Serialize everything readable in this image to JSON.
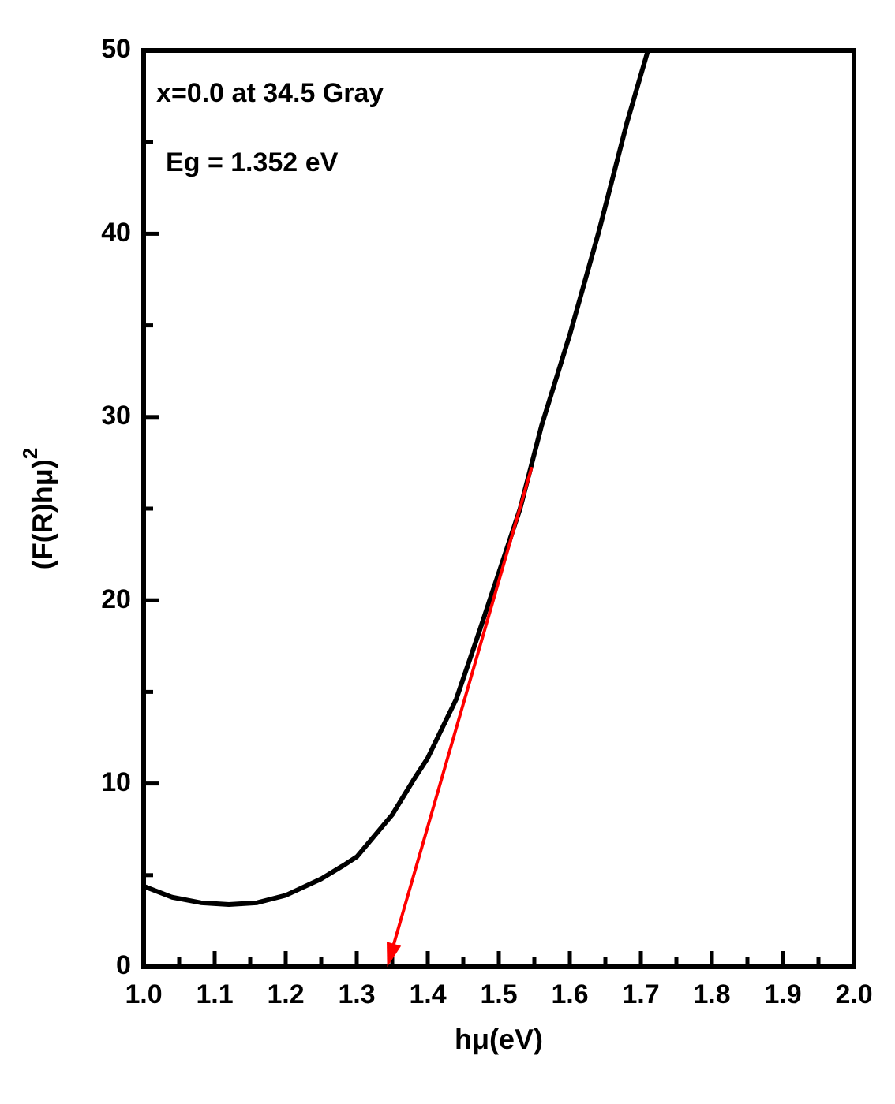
{
  "chart_data": {
    "type": "line",
    "xlabel": "hμ(eV)",
    "ylabel": "(F(R)hμ)$^{2}$",
    "marker": "none",
    "line_style": "solid",
    "legend": false,
    "grid": false,
    "xlim": [
      1.0,
      2.0
    ],
    "xticks": [
      {
        "value": 1.0,
        "label": "1.0"
      },
      {
        "value": 1.05,
        "label": null
      },
      {
        "value": 1.1,
        "label": "1.1"
      },
      {
        "value": 1.15,
        "label": null
      },
      {
        "value": 1.2,
        "label": "1.2"
      },
      {
        "value": 1.25,
        "label": null
      },
      {
        "value": 1.3,
        "label": "1.3"
      },
      {
        "value": 1.35,
        "label": null
      },
      {
        "value": 1.4,
        "label": "1.4"
      },
      {
        "value": 1.45,
        "label": null
      },
      {
        "value": 1.5,
        "label": "1.5"
      },
      {
        "value": 1.55,
        "label": null
      },
      {
        "value": 1.6,
        "label": "1.6"
      },
      {
        "value": 1.65,
        "label": null
      },
      {
        "value": 1.7,
        "label": "1.7"
      },
      {
        "value": 1.75,
        "label": null
      },
      {
        "value": 1.8,
        "label": "1.8"
      },
      {
        "value": 1.85,
        "label": null
      },
      {
        "value": 1.9,
        "label": "1.9"
      },
      {
        "value": 1.95,
        "label": null
      },
      {
        "value": 2.0,
        "label": "2.0"
      }
    ],
    "ylim": [
      0,
      50
    ],
    "yticks": [
      0,
      {
        "value": 5,
        "label": null
      },
      10,
      {
        "value": 15,
        "label": null
      },
      20,
      {
        "value": 25,
        "label": null
      },
      30,
      {
        "value": 35,
        "label": null
      },
      40,
      {
        "value": 45,
        "label": null
      },
      50
    ],
    "annotations": [
      "x=0.0 at 34.5 Gray",
      "Eg = 1.352 eV"
    ],
    "series": [
      {
        "color": "#000000",
        "x": [
          1.0,
          1.04,
          1.08,
          1.12,
          1.16,
          1.2,
          1.25,
          1.28,
          1.3,
          1.35,
          1.38,
          1.4,
          1.44,
          1.47,
          1.5,
          1.53,
          1.56,
          1.6,
          1.64,
          1.68,
          1.71
        ],
        "values": [
          4.4,
          3.8,
          3.5,
          3.4,
          3.5,
          3.9,
          4.8,
          5.5,
          6.0,
          8.3,
          10.2,
          11.4,
          14.6,
          18,
          21.5,
          25,
          29.5,
          34.5,
          40,
          46,
          50
        ]
      }
    ]
  }
}
